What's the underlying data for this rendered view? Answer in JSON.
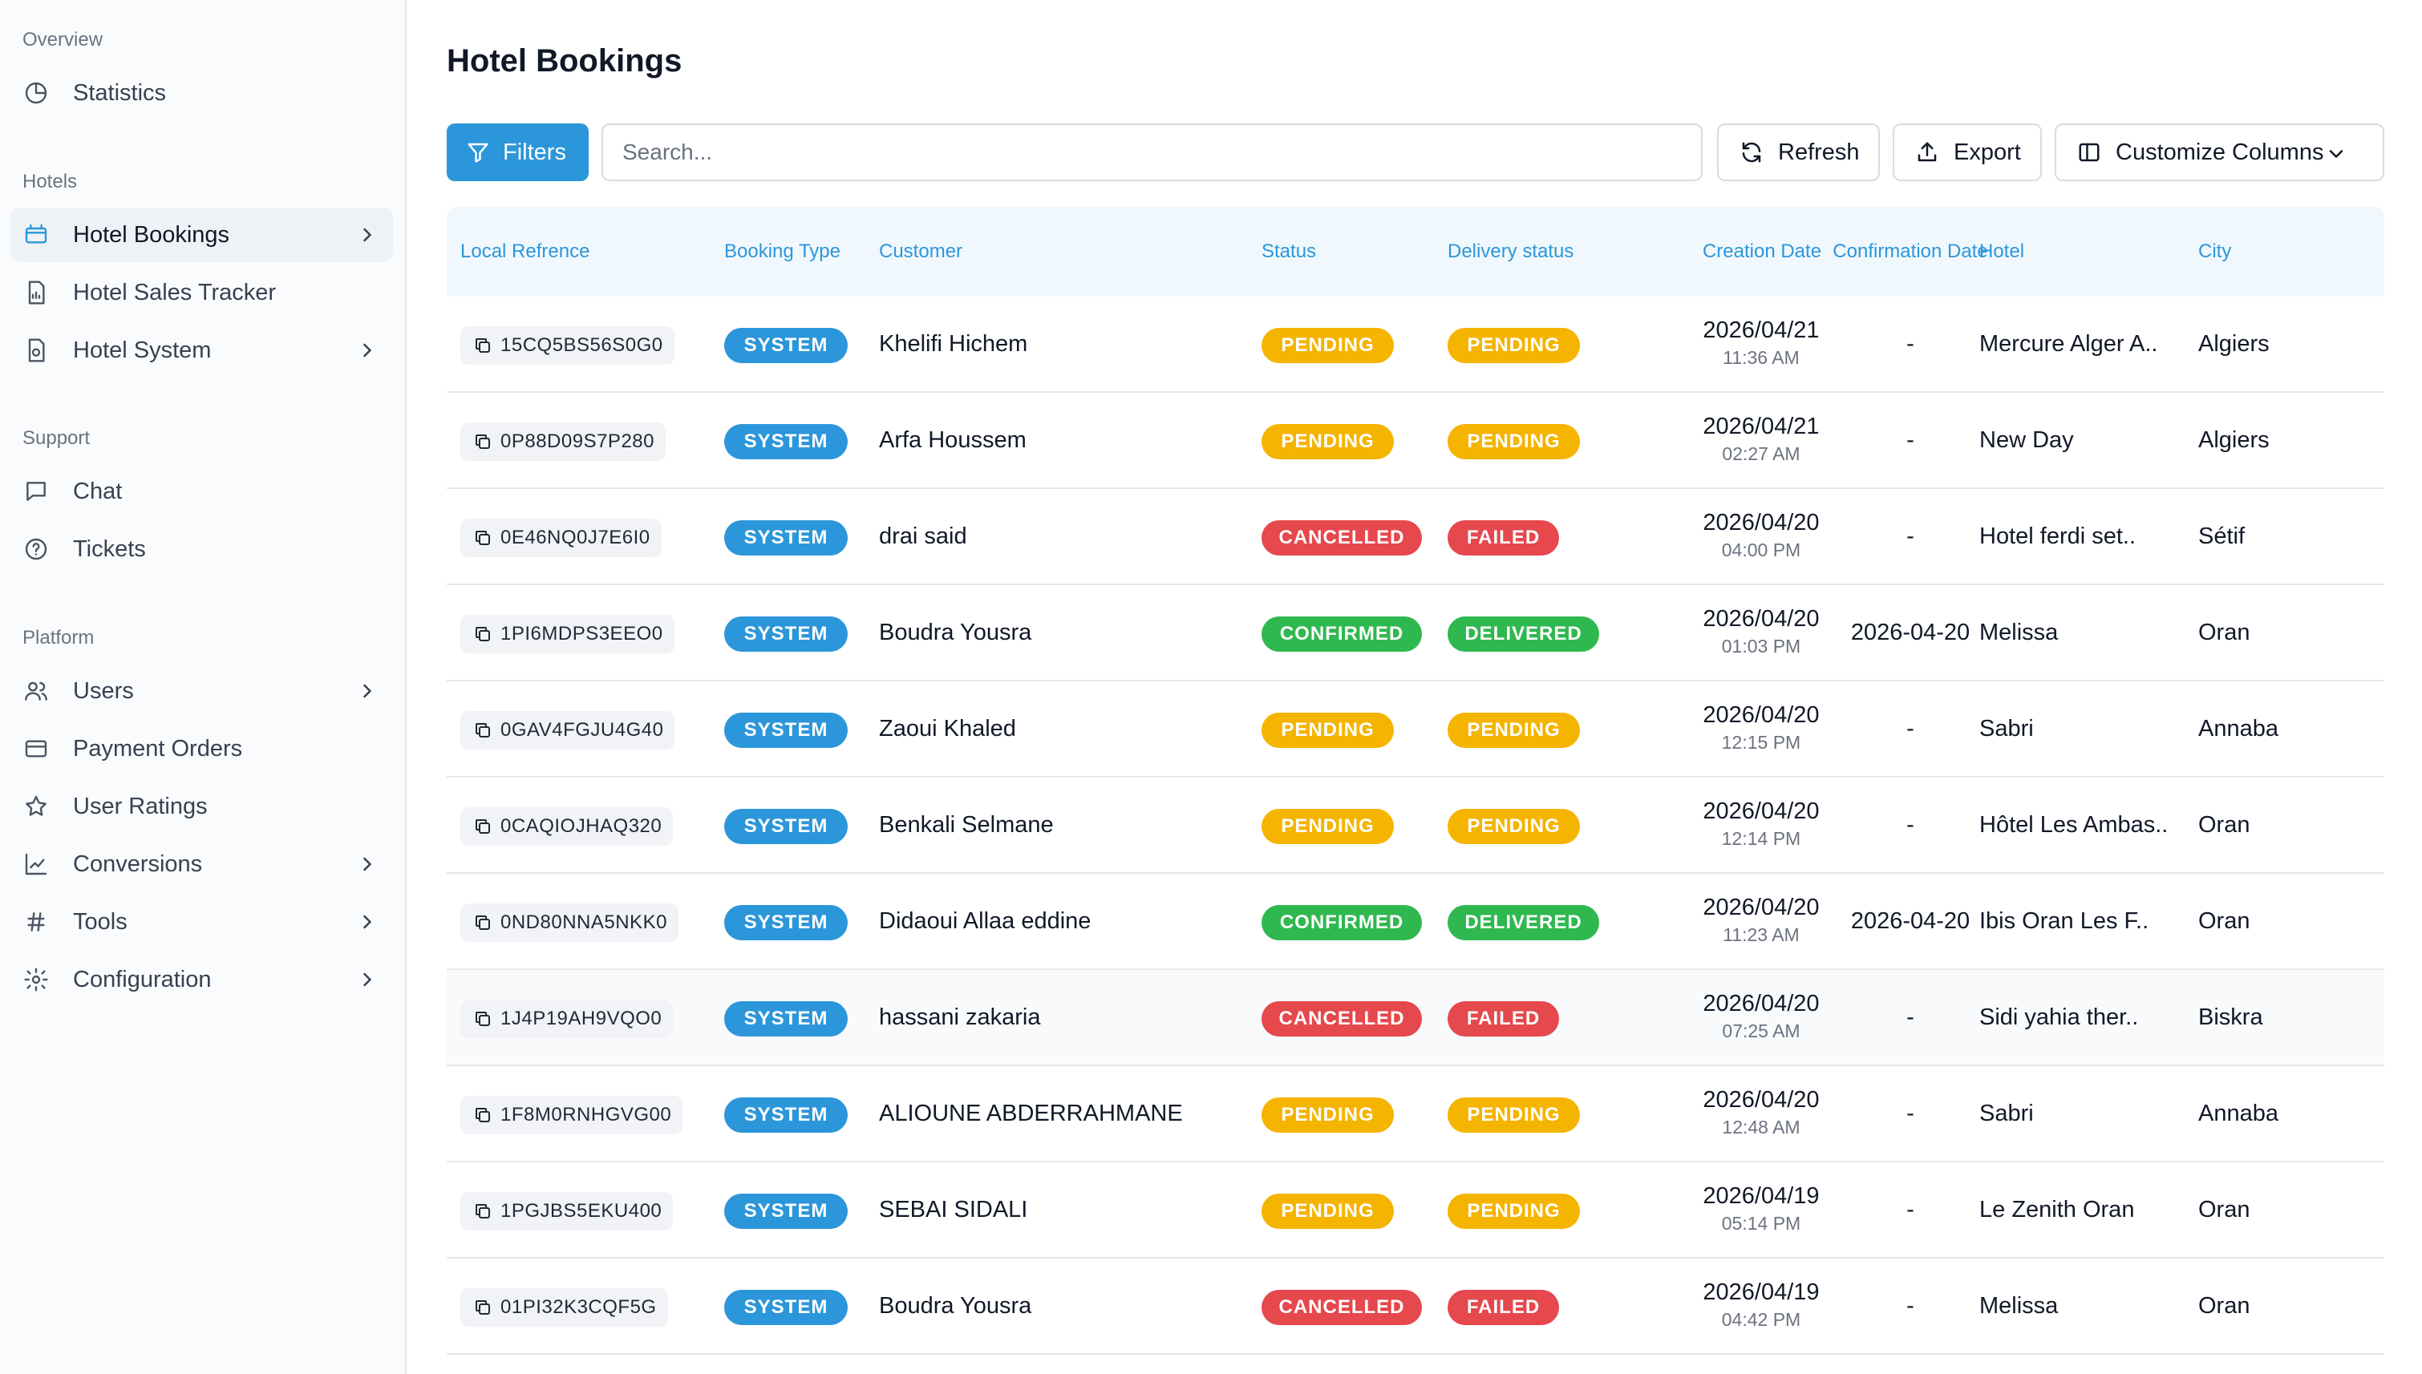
{
  "sidebar": {
    "sections": [
      {
        "title": "Overview",
        "items": [
          {
            "label": "Statistics",
            "icon": "pie-chart-icon",
            "chevron": false
          }
        ]
      },
      {
        "title": "Hotels",
        "items": [
          {
            "label": "Hotel Bookings",
            "icon": "hotel-card-icon",
            "chevron": true,
            "active": true
          },
          {
            "label": "Hotel Sales Tracker",
            "icon": "document-chart-icon",
            "chevron": false
          },
          {
            "label": "Hotel System",
            "icon": "document-link-icon",
            "chevron": true
          }
        ]
      },
      {
        "title": "Support",
        "items": [
          {
            "label": "Chat",
            "icon": "chat-icon",
            "chevron": false
          },
          {
            "label": "Tickets",
            "icon": "help-circle-icon",
            "chevron": false
          }
        ]
      },
      {
        "title": "Platform",
        "items": [
          {
            "label": "Users",
            "icon": "users-icon",
            "chevron": true
          },
          {
            "label": "Payment Orders",
            "icon": "credit-card-icon",
            "chevron": false
          },
          {
            "label": "User Ratings",
            "icon": "star-icon",
            "chevron": false
          },
          {
            "label": "Conversions",
            "icon": "line-chart-icon",
            "chevron": true
          },
          {
            "label": "Tools",
            "icon": "hash-icon",
            "chevron": true
          },
          {
            "label": "Configuration",
            "icon": "gear-icon",
            "chevron": true
          }
        ]
      }
    ]
  },
  "page": {
    "title": "Hotel Bookings"
  },
  "toolbar": {
    "filters_label": "Filters",
    "search_placeholder": "Search...",
    "refresh_label": "Refresh",
    "export_label": "Export",
    "columns_label": "Customize Columns"
  },
  "table": {
    "columns": [
      "Local Refrence",
      "Booking Type",
      "Customer",
      "Status",
      "Delivery status",
      "Creation Date",
      "Confirmation Date",
      "Hotel",
      "City"
    ],
    "rows": [
      {
        "ref": "15CQ5BS56S0G0",
        "type": "SYSTEM",
        "customer": "Khelifi Hichem",
        "status": "PENDING",
        "delivery": "PENDING",
        "date": "2026/04/21",
        "time": "11:36 AM",
        "confirmation": "-",
        "hotel": "Mercure Alger A..",
        "city": "Algiers"
      },
      {
        "ref": "0P88D09S7P280",
        "type": "SYSTEM",
        "customer": "Arfa Houssem",
        "status": "PENDING",
        "delivery": "PENDING",
        "date": "2026/04/21",
        "time": "02:27 AM",
        "confirmation": "-",
        "hotel": "New Day",
        "city": "Algiers"
      },
      {
        "ref": "0E46NQ0J7E6I0",
        "type": "SYSTEM",
        "customer": "drai said",
        "status": "CANCELLED",
        "delivery": "FAILED",
        "date": "2026/04/20",
        "time": "04:00 PM",
        "confirmation": "-",
        "hotel": "Hotel ferdi set..",
        "city": "Sétif"
      },
      {
        "ref": "1PI6MDPS3EEO0",
        "type": "SYSTEM",
        "customer": "Boudra Yousra",
        "status": "CONFIRMED",
        "delivery": "DELIVERED",
        "date": "2026/04/20",
        "time": "01:03 PM",
        "confirmation": "2026-04-20",
        "hotel": "Melissa",
        "city": "Oran"
      },
      {
        "ref": "0GAV4FGJU4G40",
        "type": "SYSTEM",
        "customer": "Zaoui Khaled",
        "status": "PENDING",
        "delivery": "PENDING",
        "date": "2026/04/20",
        "time": "12:15 PM",
        "confirmation": "-",
        "hotel": "Sabri",
        "city": "Annaba"
      },
      {
        "ref": "0CAQIOJHAQ320",
        "type": "SYSTEM",
        "customer": "Benkali Selmane",
        "status": "PENDING",
        "delivery": "PENDING",
        "date": "2026/04/20",
        "time": "12:14 PM",
        "confirmation": "-",
        "hotel": "Hôtel Les Ambas..",
        "city": "Oran"
      },
      {
        "ref": "0ND80NNA5NKK0",
        "type": "SYSTEM",
        "customer": "Didaoui Allaa eddine",
        "status": "CONFIRMED",
        "delivery": "DELIVERED",
        "date": "2026/04/20",
        "time": "11:23 AM",
        "confirmation": "2026-04-20",
        "hotel": "Ibis Oran Les F..",
        "city": "Oran"
      },
      {
        "ref": "1J4P19AH9VQO0",
        "type": "SYSTEM",
        "customer": "hassani zakaria",
        "status": "CANCELLED",
        "delivery": "FAILED",
        "date": "2026/04/20",
        "time": "07:25 AM",
        "confirmation": "-",
        "hotel": "Sidi yahia ther..",
        "city": "Biskra",
        "highlighted": true
      },
      {
        "ref": "1F8M0RNHGVG00",
        "type": "SYSTEM",
        "customer": "ALIOUNE ABDERRAHMANE",
        "status": "PENDING",
        "delivery": "PENDING",
        "date": "2026/04/20",
        "time": "12:48 AM",
        "confirmation": "-",
        "hotel": "Sabri",
        "city": "Annaba"
      },
      {
        "ref": "1PGJBS5EKU400",
        "type": "SYSTEM",
        "customer": "SEBAI SIDALI",
        "status": "PENDING",
        "delivery": "PENDING",
        "date": "2026/04/19",
        "time": "05:14 PM",
        "confirmation": "-",
        "hotel": "Le Zenith Oran",
        "city": "Oran"
      },
      {
        "ref": "01PI32K3CQF5G",
        "type": "SYSTEM",
        "customer": "Boudra Yousra",
        "status": "CANCELLED",
        "delivery": "FAILED",
        "date": "2026/04/19",
        "time": "04:42 PM",
        "confirmation": "-",
        "hotel": "Melissa",
        "city": "Oran"
      }
    ]
  },
  "colors": {
    "accent": "#2c96da",
    "pending": "#f5b400",
    "cancelled": "#e5484d",
    "confirmed": "#2fb84f"
  }
}
